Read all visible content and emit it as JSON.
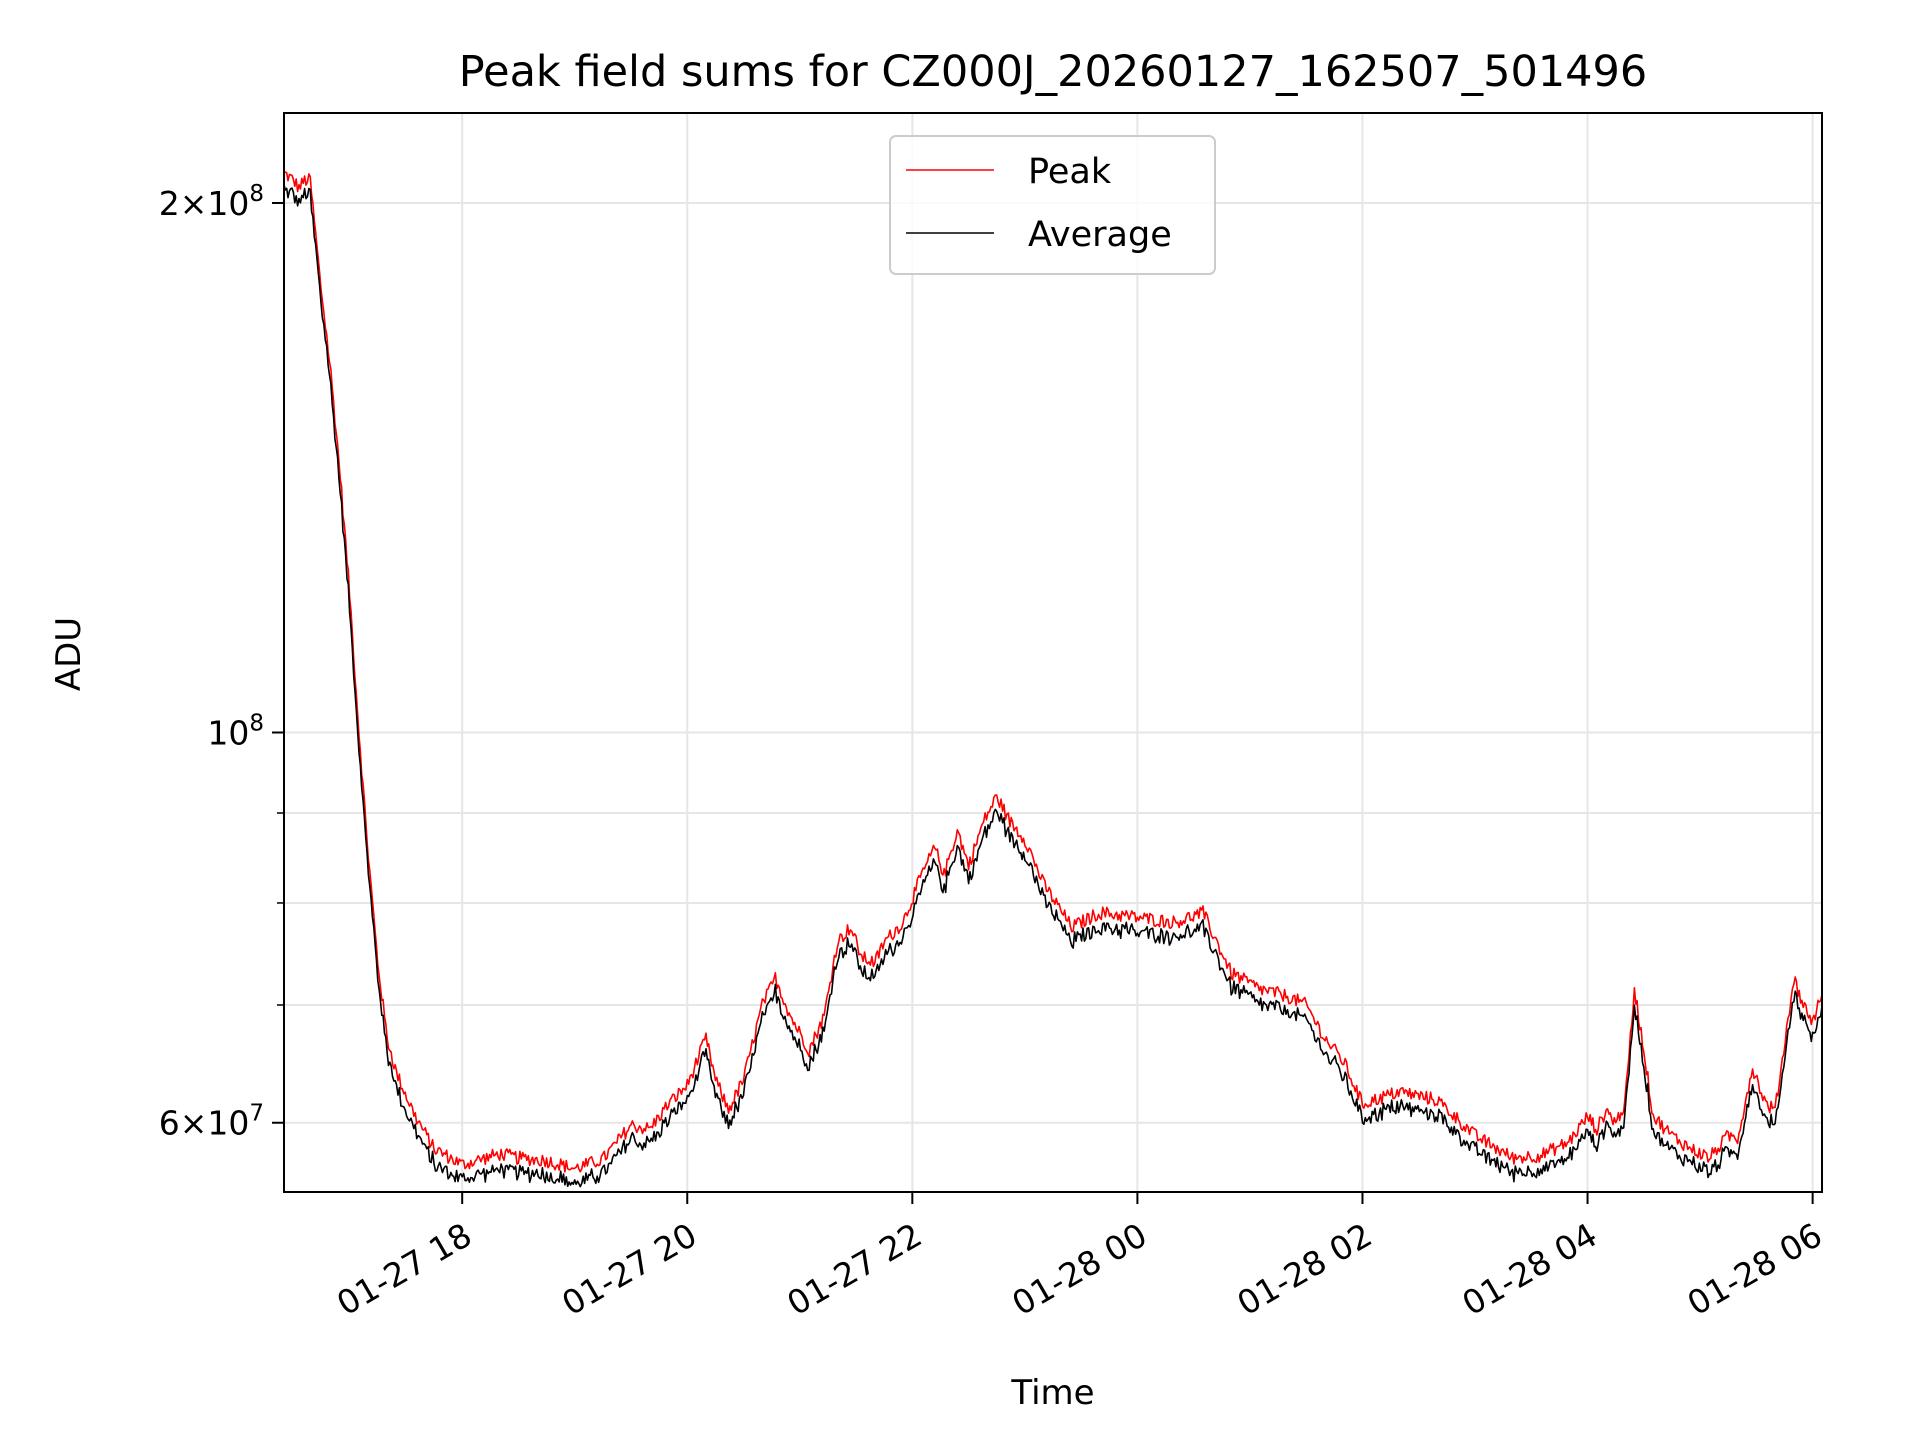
{
  "chart_data": {
    "type": "line",
    "title": "Peak field sums for CZ000J_20260127_162507_501496",
    "xlabel": "Time",
    "ylabel": "ADU",
    "yscale": "log",
    "x_unit": "hour",
    "xlim": [
      "01-27 16:25",
      "01-28 06:05"
    ],
    "ylim": [
      54800000,
      225000000
    ],
    "x_ticks": [
      {
        "value": "01-27 18:00",
        "label": "01-27 18"
      },
      {
        "value": "01-27 20:00",
        "label": "01-27 20"
      },
      {
        "value": "01-27 22:00",
        "label": "01-27 22"
      },
      {
        "value": "01-28 00:00",
        "label": "01-28 00"
      },
      {
        "value": "01-28 02:00",
        "label": "01-28 02"
      },
      {
        "value": "01-28 04:00",
        "label": "01-28 04"
      },
      {
        "value": "01-28 06:00",
        "label": "01-28 06"
      }
    ],
    "y_major_ticks": [
      {
        "value": 60000000,
        "mant": "6",
        "exp": "7"
      },
      {
        "value": 100000000,
        "mant": "",
        "exp": "8"
      },
      {
        "value": 200000000,
        "mant": "2",
        "exp": "8"
      }
    ],
    "y_minor_ticks": [
      70000000,
      80000000,
      90000000
    ],
    "grid": true,
    "legend": {
      "placement": "top-center",
      "entries": [
        "Peak",
        "Average"
      ]
    },
    "colors": {
      "peak": "#ff0000",
      "average": "#000000",
      "grid": "#e6e6e6"
    },
    "series": [
      {
        "name": "Peak",
        "color": "#ff0000",
        "points": [
          [
            "01-27 16:25",
            208000000
          ],
          [
            "01-27 16:30",
            206000000
          ],
          [
            "01-27 16:33",
            204000000
          ],
          [
            "01-27 16:36",
            206000000
          ],
          [
            "01-27 16:39",
            206000000
          ],
          [
            "01-27 16:44",
            182000000
          ],
          [
            "01-27 16:50",
            160000000
          ],
          [
            "01-27 16:55",
            140000000
          ],
          [
            "01-27 17:00",
            120000000
          ],
          [
            "01-27 17:05",
            100000000
          ],
          [
            "01-27 17:10",
            85000000
          ],
          [
            "01-27 17:15",
            74000000
          ],
          [
            "01-27 17:20",
            67000000
          ],
          [
            "01-27 17:25",
            64000000
          ],
          [
            "01-27 17:35",
            60500000
          ],
          [
            "01-27 17:45",
            58000000
          ],
          [
            "01-27 18:00",
            56800000
          ],
          [
            "01-27 18:10",
            57200000
          ],
          [
            "01-27 18:20",
            57600000
          ],
          [
            "01-27 18:30",
            57300000
          ],
          [
            "01-27 18:45",
            57100000
          ],
          [
            "01-27 19:00",
            56500000
          ],
          [
            "01-27 19:15",
            57200000
          ],
          [
            "01-27 19:30",
            59800000
          ],
          [
            "01-27 19:40",
            59500000
          ],
          [
            "01-27 19:50",
            61500000
          ],
          [
            "01-27 20:00",
            63000000
          ],
          [
            "01-27 20:10",
            67000000
          ],
          [
            "01-27 20:15",
            63500000
          ],
          [
            "01-27 20:22",
            61000000
          ],
          [
            "01-27 20:30",
            63500000
          ],
          [
            "01-27 20:40",
            70000000
          ],
          [
            "01-27 20:47",
            72500000
          ],
          [
            "01-27 20:55",
            69000000
          ],
          [
            "01-27 21:05",
            66000000
          ],
          [
            "01-27 21:13",
            69000000
          ],
          [
            "01-27 21:20",
            76000000
          ],
          [
            "01-27 21:27",
            77500000
          ],
          [
            "01-27 21:33",
            74500000
          ],
          [
            "01-27 21:40",
            74000000
          ],
          [
            "01-27 21:45",
            76000000
          ],
          [
            "01-27 21:55",
            78000000
          ],
          [
            "01-27 22:05",
            83000000
          ],
          [
            "01-27 22:12",
            86000000
          ],
          [
            "01-27 22:17",
            83000000
          ],
          [
            "01-27 22:24",
            88000000
          ],
          [
            "01-27 22:30",
            84000000
          ],
          [
            "01-27 22:38",
            89000000
          ],
          [
            "01-27 22:45",
            92000000
          ],
          [
            "01-27 22:52",
            89000000
          ],
          [
            "01-27 23:00",
            87000000
          ],
          [
            "01-27 23:10",
            82000000
          ],
          [
            "01-27 23:25",
            77500000
          ],
          [
            "01-27 23:40",
            79000000
          ],
          [
            "01-28 00:00",
            78500000
          ],
          [
            "01-28 00:20",
            78000000
          ],
          [
            "01-28 00:35",
            79000000
          ],
          [
            "01-28 00:50",
            73000000
          ],
          [
            "01-28 01:05",
            71500000
          ],
          [
            "01-28 01:20",
            70800000
          ],
          [
            "01-28 01:30",
            70000000
          ],
          [
            "01-28 01:40",
            67000000
          ],
          [
            "01-28 01:50",
            65000000
          ],
          [
            "01-28 02:00",
            61500000
          ],
          [
            "01-28 02:20",
            62500000
          ],
          [
            "01-28 02:40",
            61800000
          ],
          [
            "01-28 03:00",
            59000000
          ],
          [
            "01-28 03:20",
            57300000
          ],
          [
            "01-28 03:35",
            57500000
          ],
          [
            "01-28 03:50",
            58500000
          ],
          [
            "01-28 04:00",
            60500000
          ],
          [
            "01-28 04:05",
            59500000
          ],
          [
            "01-28 04:10",
            61000000
          ],
          [
            "01-28 04:15",
            60000000
          ],
          [
            "01-28 04:20",
            61500000
          ],
          [
            "01-28 04:25",
            71500000
          ],
          [
            "01-28 04:30",
            66000000
          ],
          [
            "01-28 04:35",
            60500000
          ],
          [
            "01-28 04:45",
            59000000
          ],
          [
            "01-28 04:55",
            58000000
          ],
          [
            "01-28 05:05",
            57300000
          ],
          [
            "01-28 05:15",
            59000000
          ],
          [
            "01-28 05:20",
            58800000
          ],
          [
            "01-28 05:28",
            64500000
          ],
          [
            "01-28 05:35",
            61500000
          ],
          [
            "01-28 05:40",
            61000000
          ],
          [
            "01-28 05:50",
            72500000
          ],
          [
            "01-28 05:55",
            70000000
          ],
          [
            "01-28 06:00",
            68500000
          ],
          [
            "01-28 06:05",
            71000000
          ]
        ]
      },
      {
        "name": "Average",
        "color": "#000000",
        "points": []
      }
    ]
  }
}
